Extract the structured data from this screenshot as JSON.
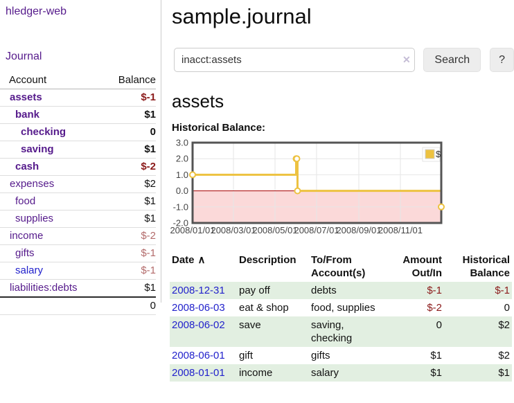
{
  "sidebar": {
    "brand": "hledger-web",
    "journal_link": "Journal",
    "columns": {
      "account": "Account",
      "balance": "Balance"
    },
    "accounts": [
      {
        "name": "assets",
        "level": 1,
        "bold": true,
        "balance": "$-1",
        "neg": "strong"
      },
      {
        "name": "bank",
        "level": 2,
        "bold": true,
        "balance": "$1",
        "neg": "none"
      },
      {
        "name": "checking",
        "level": 3,
        "bold": true,
        "balance": "0",
        "neg": "none"
      },
      {
        "name": "saving",
        "level": 3,
        "bold": true,
        "balance": "$1",
        "neg": "none"
      },
      {
        "name": "cash",
        "level": 2,
        "bold": true,
        "balance": "$-2",
        "neg": "strong"
      },
      {
        "name": "expenses",
        "level": 1,
        "bold": false,
        "balance": "$2",
        "neg": "none"
      },
      {
        "name": "food",
        "level": 2,
        "bold": false,
        "balance": "$1",
        "neg": "none"
      },
      {
        "name": "supplies",
        "level": 2,
        "bold": false,
        "balance": "$1",
        "neg": "none"
      },
      {
        "name": "income",
        "level": 1,
        "bold": false,
        "balance": "$-2",
        "neg": "soft"
      },
      {
        "name": "gifts",
        "level": 2,
        "bold": false,
        "balance": "$-1",
        "neg": "soft"
      },
      {
        "name": "salary",
        "level": 2,
        "bold": false,
        "balance": "$-1",
        "neg": "soft",
        "link_style": "blue"
      },
      {
        "name": "liabilities:debts",
        "level": 1,
        "bold": false,
        "balance": "$1",
        "neg": "none"
      }
    ],
    "total": "0"
  },
  "header": {
    "title": "sample.journal"
  },
  "search": {
    "value": "inacct:assets",
    "button_label": "Search",
    "help_label": "?"
  },
  "icons": {
    "clear_search": "✕",
    "sort_ascending": "∧"
  },
  "account_page": {
    "heading": "assets",
    "chart_label": "Historical Balance:"
  },
  "chart_data": {
    "type": "line",
    "style": "step-after",
    "title": "Historical Balance",
    "legend": [
      {
        "label": "$",
        "color": "#edc240"
      }
    ],
    "legend_position": "top-right",
    "grid": true,
    "ylim": [
      -2,
      3
    ],
    "y_ticks": [
      "3.0",
      "2.0",
      "1.0",
      "0.0",
      "-1.0",
      "-2.0"
    ],
    "x_range_days": 365,
    "x_ticks": [
      {
        "label": "2008/01/01",
        "day": 0
      },
      {
        "label": "2008/03/01",
        "day": 60
      },
      {
        "label": "2008/05/01",
        "day": 121
      },
      {
        "label": "2008/07/01",
        "day": 182
      },
      {
        "label": "2008/09/01",
        "day": 244
      },
      {
        "label": "2008/11/01",
        "day": 305
      }
    ],
    "series": [
      {
        "name": "$",
        "color": "#edc240",
        "points": [
          {
            "date": "2008-01-01",
            "day": 0,
            "value": 1
          },
          {
            "date": "2008-06-01",
            "day": 152,
            "value": 2
          },
          {
            "date": "2008-06-02",
            "day": 153,
            "value": 2
          },
          {
            "date": "2008-06-03",
            "day": 154,
            "value": 0
          },
          {
            "date": "2008-12-31",
            "day": 365,
            "value": -1
          }
        ]
      }
    ],
    "colors": {
      "negative_region": "#fbd9d9",
      "zero_line": "#aa0000",
      "border": "#545454",
      "grid": "#e6e6e6"
    }
  },
  "register": {
    "headers": [
      {
        "key": "date",
        "lines": [
          "Date"
        ],
        "sortable": true,
        "sort": "asc"
      },
      {
        "key": "description",
        "lines": [
          "Description"
        ],
        "sortable": false
      },
      {
        "key": "accounts",
        "lines": [
          "To/From",
          "Account(s)"
        ],
        "sortable": false
      },
      {
        "key": "amount",
        "lines": [
          "Amount",
          "Out/In"
        ],
        "sortable": false,
        "numeric": true
      },
      {
        "key": "balance",
        "lines": [
          "Historical",
          "Balance"
        ],
        "sortable": false,
        "numeric": true
      }
    ],
    "rows": [
      {
        "date": "2008-12-31",
        "description": "pay off",
        "accounts": "debts",
        "amount": "$-1",
        "amount_neg": true,
        "balance": "$-1",
        "balance_neg": true
      },
      {
        "date": "2008-06-03",
        "description": "eat & shop",
        "accounts": "food, supplies",
        "amount": "$-2",
        "amount_neg": true,
        "balance": "0",
        "balance_neg": false
      },
      {
        "date": "2008-06-02",
        "description": "save",
        "accounts": "saving, checking",
        "amount": "0",
        "amount_neg": false,
        "balance": "$2",
        "balance_neg": false
      },
      {
        "date": "2008-06-01",
        "description": "gift",
        "accounts": "gifts",
        "amount": "$1",
        "amount_neg": false,
        "balance": "$2",
        "balance_neg": false
      },
      {
        "date": "2008-01-01",
        "description": "income",
        "accounts": "salary",
        "amount": "$1",
        "amount_neg": false,
        "balance": "$1",
        "balance_neg": false
      }
    ]
  },
  "colors": {
    "accent_purple": "#551a8b",
    "link_blue": "#2222cc",
    "negative_strong": "#8b1a1a",
    "negative_soft": "#b36b6b",
    "row_green": "#e2efe1",
    "chart_gold": "#edc240"
  }
}
